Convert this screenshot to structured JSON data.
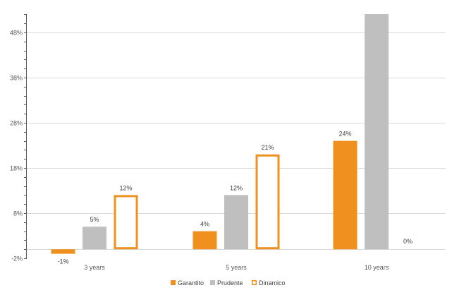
{
  "chart_data": {
    "type": "bar",
    "categories": [
      "3 years",
      "5 years",
      "10 years"
    ],
    "series": [
      {
        "name": "Garantito",
        "values": [
          -1,
          4,
          24
        ],
        "labels": [
          "-1%",
          "4%",
          "24%"
        ],
        "color": "#F0901E",
        "style": "filled"
      },
      {
        "name": "Prudente",
        "values": [
          5,
          12,
          53
        ],
        "labels": [
          "5%",
          "12%",
          ""
        ],
        "color": "#BFBFBF",
        "style": "filled"
      },
      {
        "name": "Dinamico",
        "values": [
          12,
          21,
          0
        ],
        "labels": [
          "12%",
          "21%",
          "0%"
        ],
        "color": "#F0901E",
        "style": "outline"
      }
    ],
    "ylim": [
      -2,
      53
    ],
    "yticks": [
      -2,
      8,
      18,
      28,
      38,
      48
    ],
    "ytick_labels": [
      "-2%",
      "8%",
      "18%",
      "28%",
      "38%",
      "48%"
    ],
    "grid": true,
    "legend_position": "bottom",
    "title": "",
    "xlabel": "",
    "ylabel": ""
  }
}
